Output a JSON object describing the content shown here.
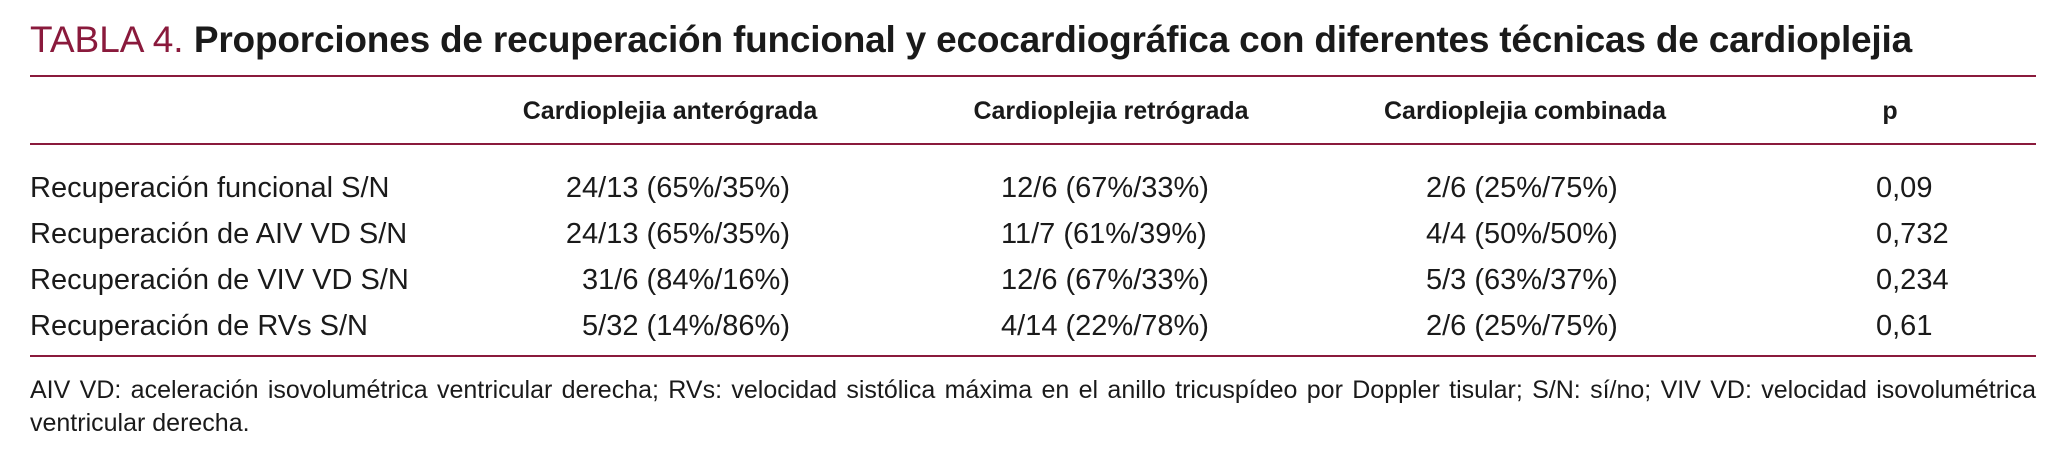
{
  "title": {
    "label": "TABLA 4.",
    "text": "Proporciones de recuperación funcional y ecocardiográfica con diferentes técnicas de cardioplejia"
  },
  "table": {
    "headers": [
      "",
      "Cardioplejia anterógrada",
      "Cardioplejia retrógrada",
      "Cardioplejia combinada",
      "p"
    ],
    "rows": [
      [
        "Recuperación funcional S/N",
        "24/13 (65%/35%)",
        "12/6 (67%/33%)",
        "2/6 (25%/75%)",
        "0,09"
      ],
      [
        "Recuperación de AIV VD S/N",
        "24/13 (65%/35%)",
        "11/7 (61%/39%)",
        "4/4 (50%/50%)",
        "0,732"
      ],
      [
        "Recuperación de VIV VD S/N",
        "31/6 (84%/16%)",
        "12/6 (67%/33%)",
        "5/3 (63%/37%)",
        "0,234"
      ],
      [
        "Recuperación de RVs S/N",
        "5/32 (14%/86%)",
        "4/14 (22%/78%)",
        "2/6 (25%/75%)",
        "0,61"
      ]
    ]
  },
  "footnote": "AIV VD: aceleración isovolumétrica ventricular derecha; RVs: velocidad sistólica máxima en el anillo tricuspídeo por Doppler tisular; S/N: sí/no; VIV VD: velocidad isovolumétrica ventricular derecha.",
  "colors": {
    "accent": "#8a1a3c",
    "text": "#1a1a1a"
  }
}
